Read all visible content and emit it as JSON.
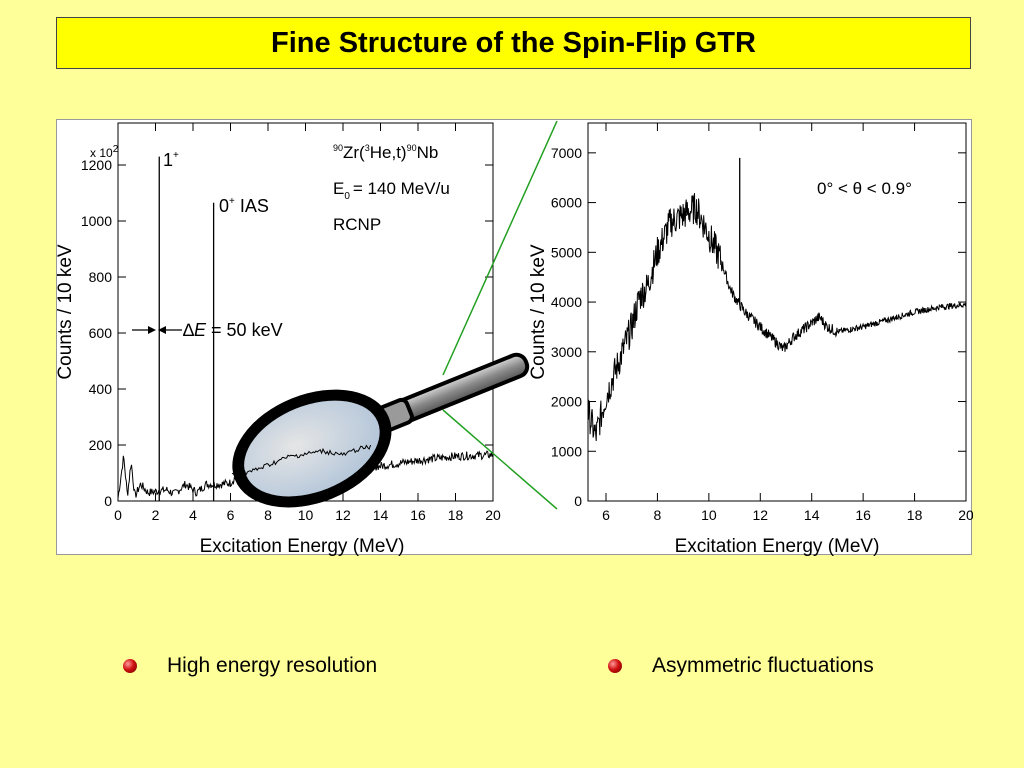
{
  "title": "Fine Structure of the Spin-Flip GTR",
  "bullets": [
    {
      "text": "High energy resolution"
    },
    {
      "text": "Asymmetric fluctuations"
    }
  ],
  "colors": {
    "background": "#ffff99",
    "title_background": "#ffff00",
    "zoom_line": "#22a022",
    "bullet": "#c00000"
  },
  "chart_data": [
    {
      "type": "line",
      "xlabel": "Excitation Energy (MeV)",
      "ylabel": "Counts / 10 keV",
      "y_multiplier": "x 10",
      "y_multiplier_exp": "2",
      "xlim": [
        0,
        20
      ],
      "ylim": [
        0,
        1350
      ],
      "xticks": [
        0,
        2,
        4,
        6,
        8,
        10,
        12,
        14,
        16,
        18,
        20
      ],
      "yticks": [
        0,
        200,
        400,
        600,
        800,
        1000,
        1200
      ],
      "annotations": {
        "reaction_mass_a": "90",
        "reaction_target": "Zr(",
        "reaction_mass_b": "3",
        "reaction_mid": "He,t)",
        "reaction_mass_c": "90",
        "reaction_product": "Nb",
        "energy_prefix": "E",
        "energy_sub": "0",
        "energy_value": "= 140 MeV/u",
        "lab": "RCNP",
        "peak1_label": "1",
        "peak1_sup": "+",
        "peak2_label": "0",
        "peak2_sup": "+",
        "peak2_suffix": " IAS",
        "resolution_delta": "∆",
        "resolution_E": "E",
        "resolution_value": " = 50 keV"
      },
      "peaks": [
        {
          "x": 2.2,
          "y": 1230
        },
        {
          "x": 5.1,
          "y": 1065
        }
      ],
      "continuum": [
        [
          0,
          10
        ],
        [
          0.3,
          160
        ],
        [
          0.5,
          20
        ],
        [
          0.7,
          140
        ],
        [
          0.9,
          15
        ],
        [
          1.2,
          60
        ],
        [
          1.6,
          30
        ],
        [
          2.6,
          40
        ],
        [
          3.0,
          25
        ],
        [
          3.6,
          60
        ],
        [
          4.2,
          30
        ],
        [
          4.7,
          60
        ],
        [
          5.5,
          60
        ],
        [
          6,
          65
        ],
        [
          7,
          140
        ],
        [
          8,
          150
        ],
        [
          9,
          185
        ],
        [
          10,
          160
        ],
        [
          11,
          140
        ],
        [
          12,
          110
        ],
        [
          14,
          125
        ],
        [
          16,
          145
        ],
        [
          18,
          160
        ],
        [
          20,
          165
        ]
      ]
    },
    {
      "type": "line",
      "xlabel": "Excitation Energy (MeV)",
      "ylabel": "Counts / 10 keV",
      "annotation": "0° < θ < 0.9°",
      "xlim": [
        5.3,
        20
      ],
      "ylim": [
        0,
        7600
      ],
      "xticks": [
        6,
        8,
        10,
        12,
        14,
        16,
        18,
        20
      ],
      "yticks": [
        0,
        1000,
        2000,
        3000,
        4000,
        5000,
        6000,
        7000
      ],
      "peak": {
        "x": 11.2,
        "y": 6900
      },
      "points": [
        [
          5.3,
          1800
        ],
        [
          5.6,
          1300
        ],
        [
          6.0,
          2100
        ],
        [
          6.5,
          2800
        ],
        [
          7.0,
          3500
        ],
        [
          7.3,
          4100
        ],
        [
          7.6,
          4300
        ],
        [
          8.0,
          5000
        ],
        [
          8.5,
          5600
        ],
        [
          9.0,
          5750
        ],
        [
          9.5,
          5900
        ],
        [
          10.0,
          5350
        ],
        [
          10.5,
          4800
        ],
        [
          10.8,
          4300
        ],
        [
          11.0,
          4100
        ],
        [
          11.4,
          3800
        ],
        [
          12.0,
          3500
        ],
        [
          12.5,
          3250
        ],
        [
          12.9,
          3050
        ],
        [
          13.3,
          3300
        ],
        [
          13.8,
          3500
        ],
        [
          14.3,
          3700
        ],
        [
          14.6,
          3500
        ],
        [
          15.0,
          3400
        ],
        [
          16.0,
          3500
        ],
        [
          17.0,
          3650
        ],
        [
          18.0,
          3800
        ],
        [
          19.0,
          3900
        ],
        [
          20.0,
          3950
        ]
      ]
    }
  ]
}
